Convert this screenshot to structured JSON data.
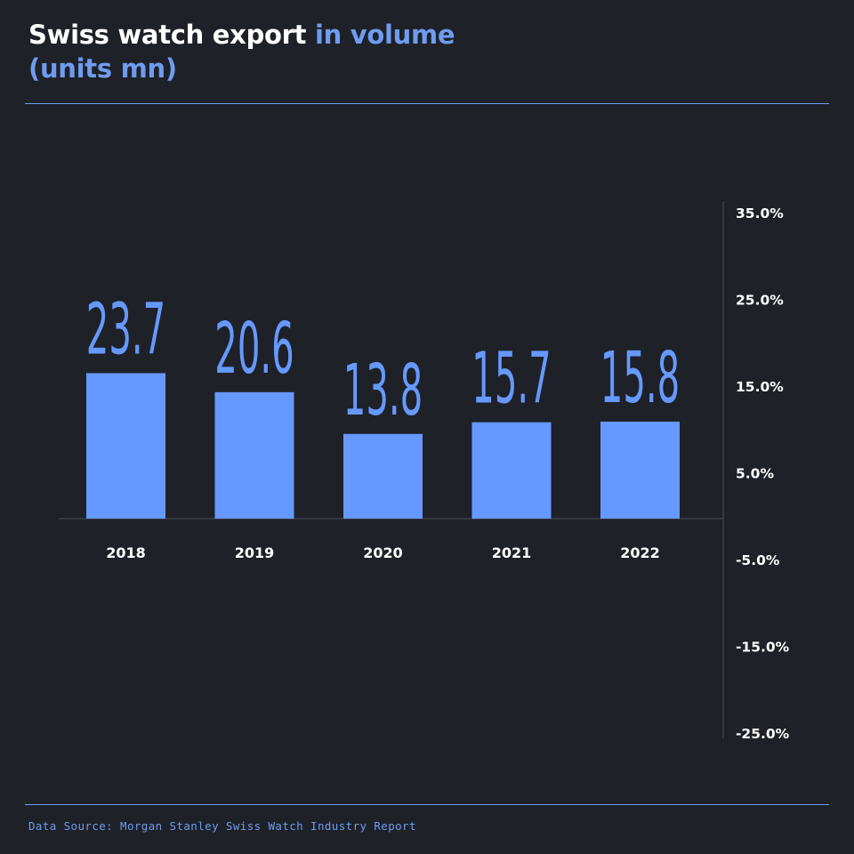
{
  "colors": {
    "background": "#1f2128",
    "bar": "#6699ff",
    "accent": "#6e9cf0",
    "text": "#ffffff",
    "axis": "#4a4e5a"
  },
  "title": {
    "white_part": "Swiss watch export ",
    "accent_part_1": "in volume",
    "accent_part_2": "(units mn)"
  },
  "source": "Data Source: Morgan Stanley Swiss Watch Industry Report",
  "chart_data": {
    "type": "bar",
    "categories": [
      "2018",
      "2019",
      "2020",
      "2021",
      "2022"
    ],
    "values": [
      23.7,
      20.6,
      13.8,
      15.7,
      15.8
    ],
    "value_labels": [
      "23.7",
      "20.6",
      "13.8",
      "15.7",
      "15.8"
    ],
    "right_axis": {
      "ticks": [
        "35.0%",
        "25.0%",
        "15.0%",
        "5.0%",
        "-5.0%",
        "-15.0%",
        "-25.0%"
      ]
    },
    "grid": false,
    "legend": "none"
  }
}
